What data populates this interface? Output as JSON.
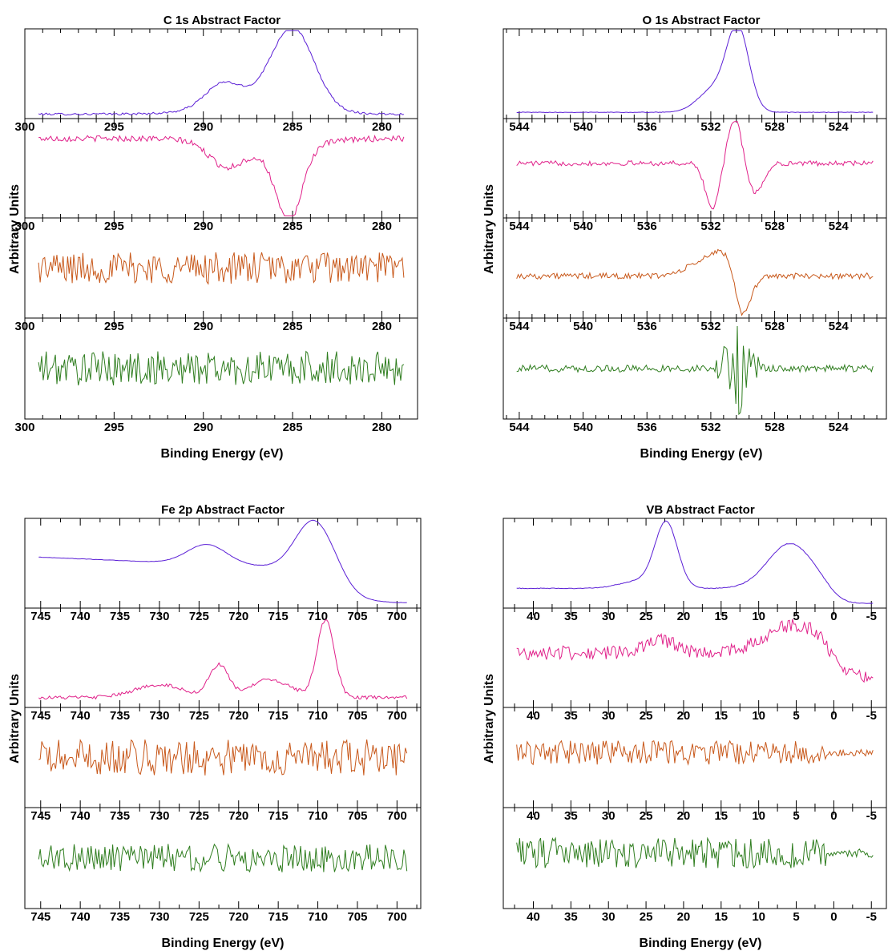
{
  "chart_data": [
    {
      "type": "line",
      "title": "C 1s Abstract Factor",
      "xlabel": "Binding Energy (eV)",
      "ylabel": "Arbitrary Units",
      "xlim": [
        300,
        278
      ],
      "x_ticks": [
        300,
        295,
        290,
        285,
        280
      ],
      "x_reversed": true,
      "series": [
        {
          "color": "#5b1fd6",
          "kind": "peaks",
          "baseline": 0.05,
          "noise": 0.012,
          "peaks": [
            {
              "x": 285.0,
              "h": 0.88,
              "w": 1.2
            },
            {
              "x": 288.9,
              "h": 0.26,
              "w": 1.0
            },
            {
              "x": 287.0,
              "h": 0.12,
              "w": 2.5
            }
          ]
        },
        {
          "color": "#e0218a",
          "kind": "peaks",
          "baseline": 0.8,
          "noise": 0.03,
          "peaks": [
            {
              "x": 285.2,
              "h": -0.72,
              "w": 0.7
            },
            {
              "x": 288.8,
              "h": -0.2,
              "w": 0.9
            },
            {
              "x": 286.5,
              "h": -0.15,
              "w": 2.2
            }
          ]
        },
        {
          "color": "#c8581a",
          "kind": "noise",
          "baseline": 0.5,
          "noise": 0.16
        },
        {
          "color": "#2e7d1e",
          "kind": "noise",
          "baseline": 0.5,
          "noise": 0.17
        }
      ]
    },
    {
      "type": "line",
      "title": "O 1s Abstract Factor",
      "xlabel": "Binding Energy (eV)",
      "ylabel": "Arbitrary Units",
      "xlim": [
        545,
        521
      ],
      "x_ticks": [
        544,
        540,
        536,
        532,
        528,
        524
      ],
      "x_reversed": true,
      "series": [
        {
          "color": "#5b1fd6",
          "kind": "peaks",
          "baseline": 0.07,
          "noise": 0.003,
          "peaks": [
            {
              "x": 530.3,
              "h": 0.9,
              "w": 0.7
            },
            {
              "x": 531.8,
              "h": 0.25,
              "w": 1.0
            }
          ]
        },
        {
          "color": "#e0218a",
          "kind": "peaks",
          "baseline": 0.55,
          "noise": 0.025,
          "peaks": [
            {
              "x": 530.5,
              "h": 0.45,
              "w": 0.45
            },
            {
              "x": 531.9,
              "h": -0.45,
              "w": 0.45
            },
            {
              "x": 529.2,
              "h": -0.3,
              "w": 0.5
            }
          ]
        },
        {
          "color": "#c8581a",
          "kind": "peaks",
          "baseline": 0.42,
          "noise": 0.03,
          "peaks": [
            {
              "x": 532.0,
              "h": 0.18,
              "w": 1.2
            },
            {
              "x": 530.0,
              "h": -0.45,
              "w": 0.5
            },
            {
              "x": 531.0,
              "h": 0.12,
              "w": 0.6
            }
          ]
        },
        {
          "color": "#2e7d1e",
          "kind": "spike",
          "baseline": 0.5,
          "noise": 0.035,
          "center": 530.3,
          "width": 1.6,
          "amp": 0.45
        }
      ]
    },
    {
      "type": "line",
      "title": "Fe 2p Abstract Factor",
      "xlabel": "Binding Energy (eV)",
      "ylabel": "Arbitrary Units",
      "xlim": [
        747,
        697
      ],
      "x_ticks": [
        745,
        740,
        735,
        730,
        725,
        720,
        715,
        710,
        705,
        700
      ],
      "x_reversed": true,
      "series": [
        {
          "color": "#5b1fd6",
          "kind": "peaks",
          "baseline": 0.06,
          "noise": 0.002,
          "slope": [
            700,
            747,
            0.0,
            0.35
          ],
          "step": [
            706.5,
            1.2,
            0.34
          ],
          "peaks": [
            {
              "x": 710.5,
              "h": 0.55,
              "w": 2.3
            },
            {
              "x": 724.0,
              "h": 0.22,
              "w": 2.5
            }
          ]
        },
        {
          "color": "#e0218a",
          "kind": "peaks",
          "baseline": 0.1,
          "noise": 0.018,
          "peaks": [
            {
              "x": 709.0,
              "h": 0.78,
              "w": 1.1
            },
            {
              "x": 722.5,
              "h": 0.32,
              "w": 1.2
            },
            {
              "x": 716.0,
              "h": 0.18,
              "w": 2.5
            },
            {
              "x": 730.0,
              "h": 0.13,
              "w": 3.0
            }
          ]
        },
        {
          "color": "#c8581a",
          "kind": "noise",
          "baseline": 0.5,
          "noise": 0.18
        },
        {
          "color": "#2e7d1e",
          "kind": "noise",
          "baseline": 0.5,
          "noise": 0.14
        }
      ]
    },
    {
      "type": "line",
      "title": "VB Abstract Factor",
      "xlabel": "Binding Energy (eV)",
      "ylabel": "Arbitrary Units",
      "xlim": [
        44,
        -7
      ],
      "x_ticks": [
        40,
        35,
        30,
        25,
        20,
        15,
        10,
        5,
        0,
        -5
      ],
      "x_reversed": true,
      "series": [
        {
          "color": "#5b1fd6",
          "kind": "peaks",
          "baseline": 0.05,
          "noise": 0.004,
          "step": [
            0.5,
            0.8,
            0.17
          ],
          "peaks": [
            {
              "x": 22.3,
              "h": 0.72,
              "w": 1.5
            },
            {
              "x": 5.8,
              "h": 0.5,
              "w": 3.0
            },
            {
              "x": 26.0,
              "h": 0.08,
              "w": 2.5
            }
          ]
        },
        {
          "color": "#e0218a",
          "kind": "peaks",
          "baseline": 0.3,
          "noise": 0.07,
          "step": [
            0.5,
            0.8,
            0.25
          ],
          "peaks": [
            {
              "x": 5.0,
              "h": 0.28,
              "w": 4.0
            },
            {
              "x": 23.0,
              "h": 0.12,
              "w": 2.0
            }
          ]
        },
        {
          "color": "#c8581a",
          "kind": "noise",
          "baseline": 0.55,
          "noise": 0.12,
          "quiet_below": 1.0
        },
        {
          "color": "#2e7d1e",
          "kind": "noise",
          "baseline": 0.55,
          "noise": 0.15,
          "quiet_below": 1.0
        }
      ]
    }
  ]
}
